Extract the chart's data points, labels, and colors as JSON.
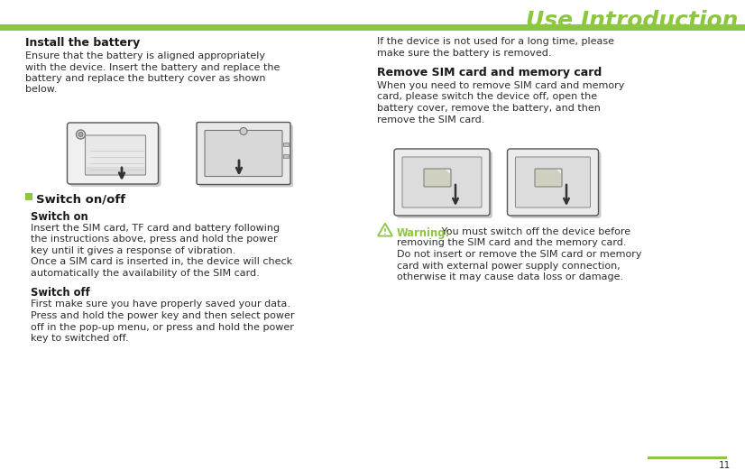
{
  "title": "Use Introduction",
  "title_color": "#8dc63f",
  "title_font_size": 18,
  "header_line_color": "#8dc63f",
  "footer_line_color": "#8dc63f",
  "page_number": "11",
  "bg_color": "#ffffff",
  "text_color": "#2d2d2d",
  "bold_color": "#1a1a1a",
  "green_color": "#8dc63f",
  "left_col": {
    "install_title": "Install the battery",
    "install_body": "Ensure that the battery is aligned appropriately\nwith the device. Insert the battery and replace the\nbattery and replace the buttery cover as shown\nbelow.",
    "switch_section_title": "Switch on/off",
    "switch_on_title": "Switch on",
    "switch_on_body": "Insert the SIM card, TF card and battery following\nthe instructions above, press and hold the power\nkey until it gives a response of vibration.\nOnce a SIM card is inserted in, the device will check\nautomatically the availability of the SIM card.",
    "switch_off_title": "Switch off",
    "switch_off_body": "First make sure you have properly saved your data.\nPress and hold the power key and then select power\noff in the pop-up menu, or press and hold the power\nkey to switched off."
  },
  "right_col": {
    "long_time_body": "If the device is not used for a long time, please\nmake sure the battery is removed.",
    "remove_title": "Remove SIM card and memory card",
    "remove_body": "When you need to remove SIM card and memory\ncard, please switch the device off, open the\nbattery cover, remove the battery, and then\nremove the SIM card.",
    "warning_label": "Warning:",
    "warning_rest": " You must switch off the device before",
    "warning_lines": [
      "removing the SIM card and the memory card.",
      "Do not insert or remove the SIM card or memory",
      "card with external power supply connection,",
      "otherwise it may cause data loss or damage."
    ]
  }
}
